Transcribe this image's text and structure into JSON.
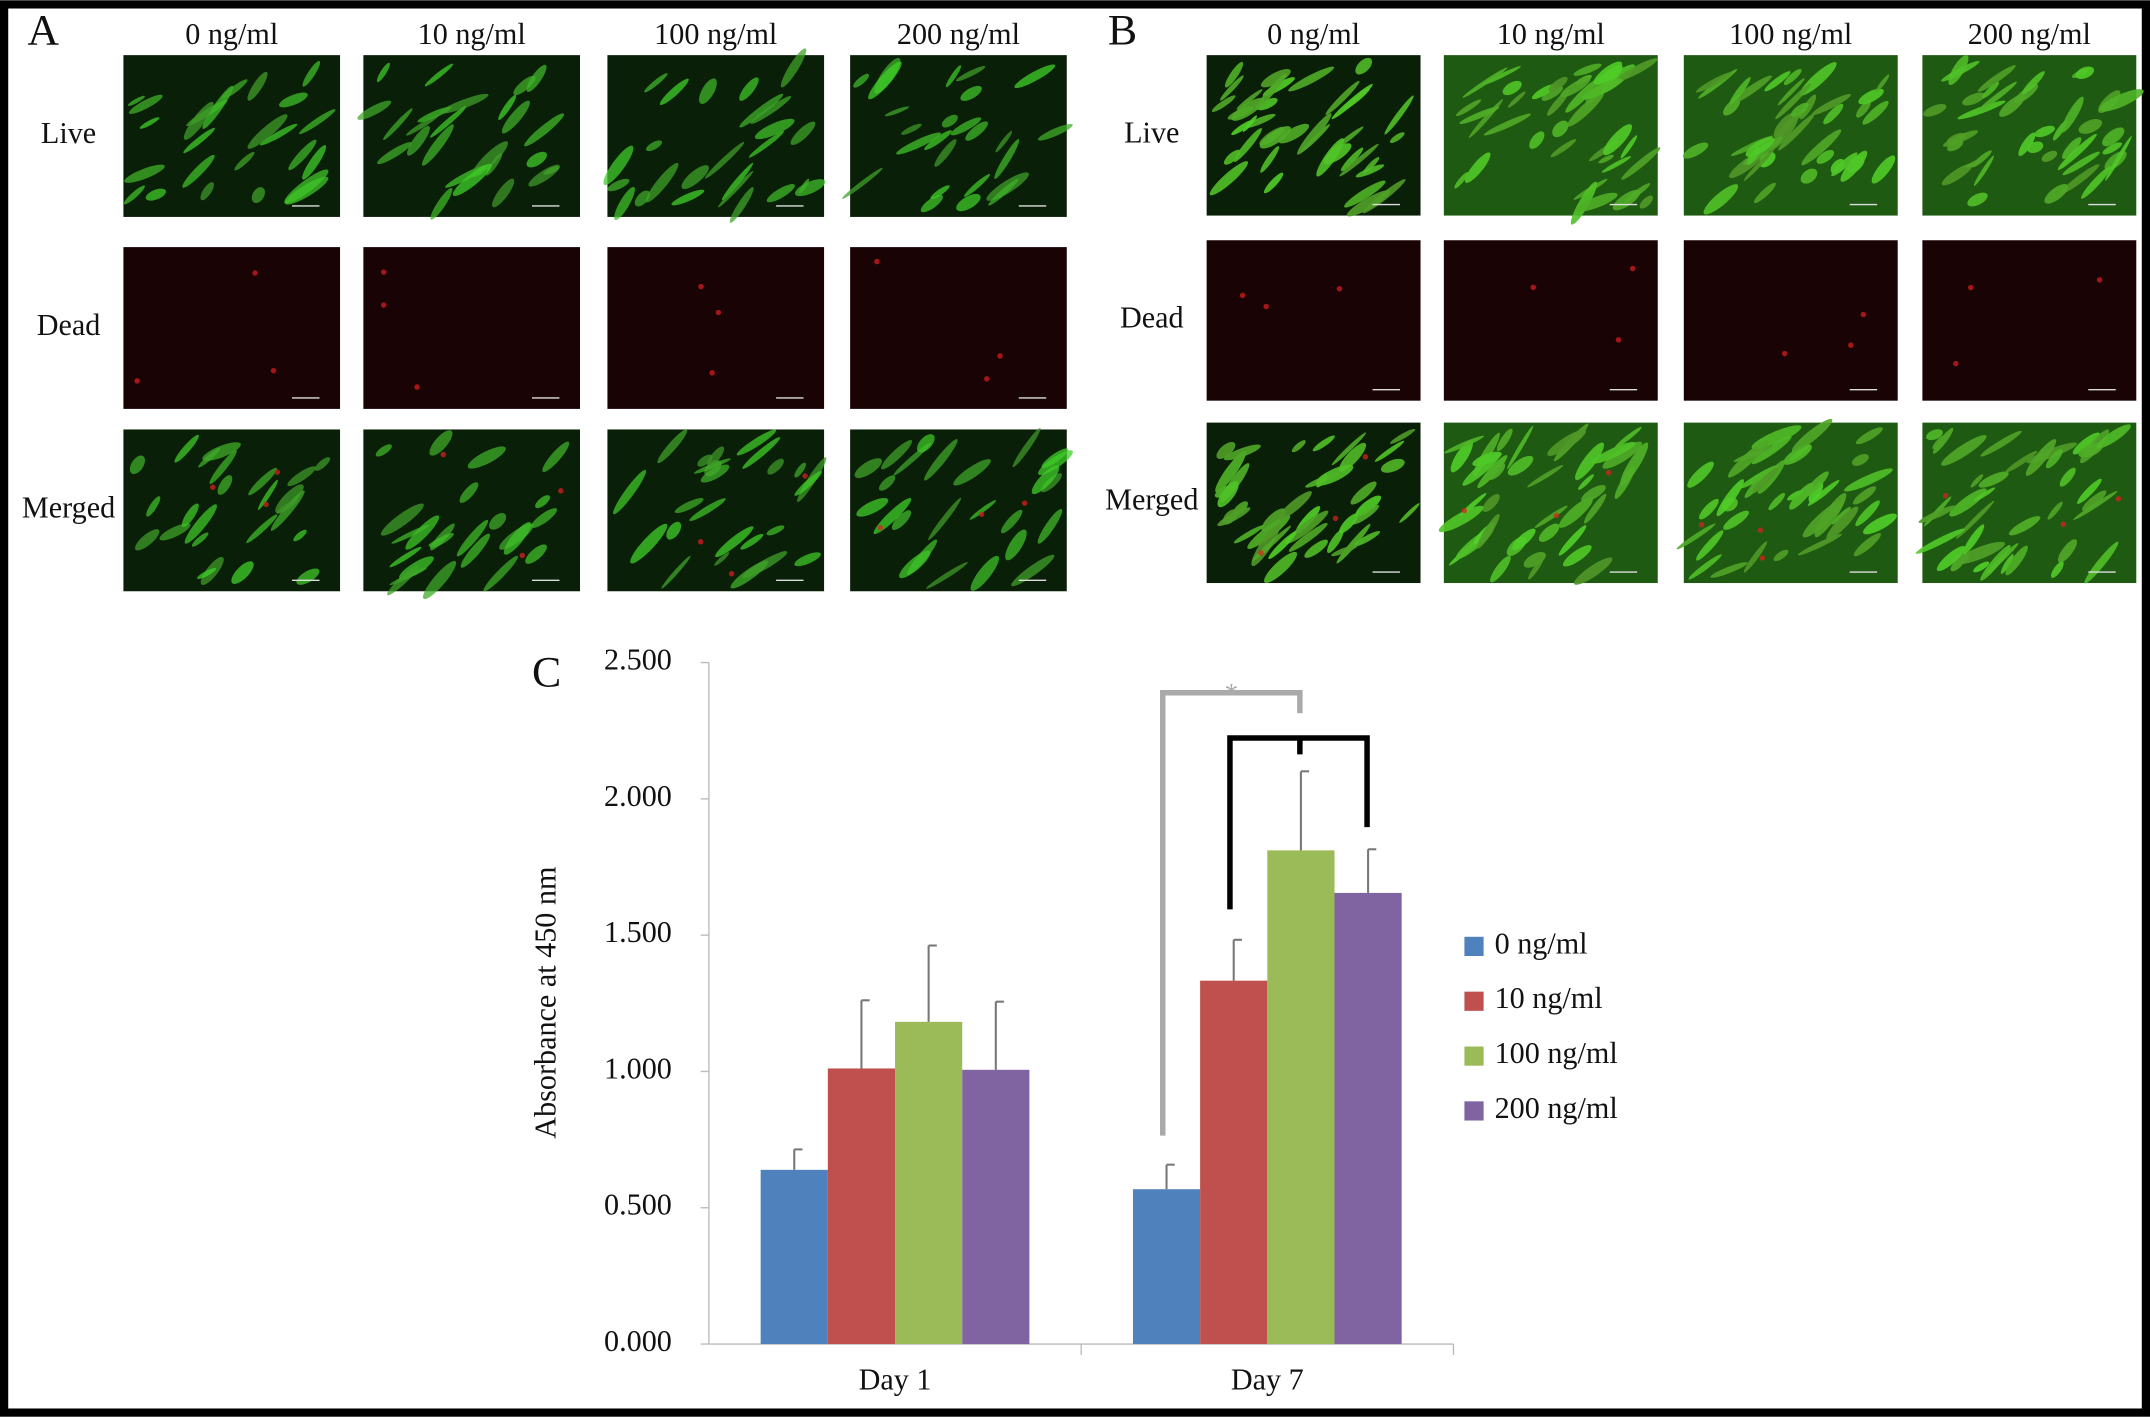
{
  "panel_a": {
    "label": "A",
    "columns": [
      "0 ng/ml",
      "10 ng/ml",
      "100 ng/ml",
      "200 ng/ml"
    ],
    "rows": [
      "Live",
      "Dead",
      "Merged"
    ]
  },
  "panel_b": {
    "label": "B",
    "columns": [
      "0 ng/ml",
      "10 ng/ml",
      "100 ng/ml",
      "200 ng/ml"
    ],
    "rows": [
      "Live",
      "Dead",
      "Merged"
    ]
  },
  "chart_data": {
    "type": "bar",
    "panel_label": "C",
    "ylabel": "Absorbance at 450 nm",
    "categories": [
      "Day 1",
      "Day 7"
    ],
    "series": [
      {
        "name": "0 ng/ml",
        "color": "#4f81bd",
        "values": [
          0.639,
          0.568
        ],
        "errors": [
          0.075,
          0.09
        ]
      },
      {
        "name": "10 ng/ml",
        "color": "#c0504d",
        "values": [
          1.011,
          1.333
        ],
        "errors": [
          0.25,
          0.15
        ]
      },
      {
        "name": "100 ng/ml",
        "color": "#9bbb59",
        "values": [
          1.182,
          1.811
        ],
        "errors": [
          0.28,
          0.29
        ]
      },
      {
        "name": "200 ng/ml",
        "color": "#8064a2",
        "values": [
          1.006,
          1.655
        ],
        "errors": [
          0.25,
          0.16
        ]
      }
    ],
    "ylim": [
      0,
      2.5
    ],
    "yticks": [
      {
        "value": 0,
        "label": "0.000"
      },
      {
        "value": 0.5,
        "label": "0.500"
      },
      {
        "value": 1,
        "label": "1.000"
      },
      {
        "value": 1.5,
        "label": "1.500"
      },
      {
        "value": 2,
        "label": "2.000"
      },
      {
        "value": 2.5,
        "label": "2.500"
      }
    ],
    "annotations": [
      "*"
    ],
    "legend": "right"
  }
}
